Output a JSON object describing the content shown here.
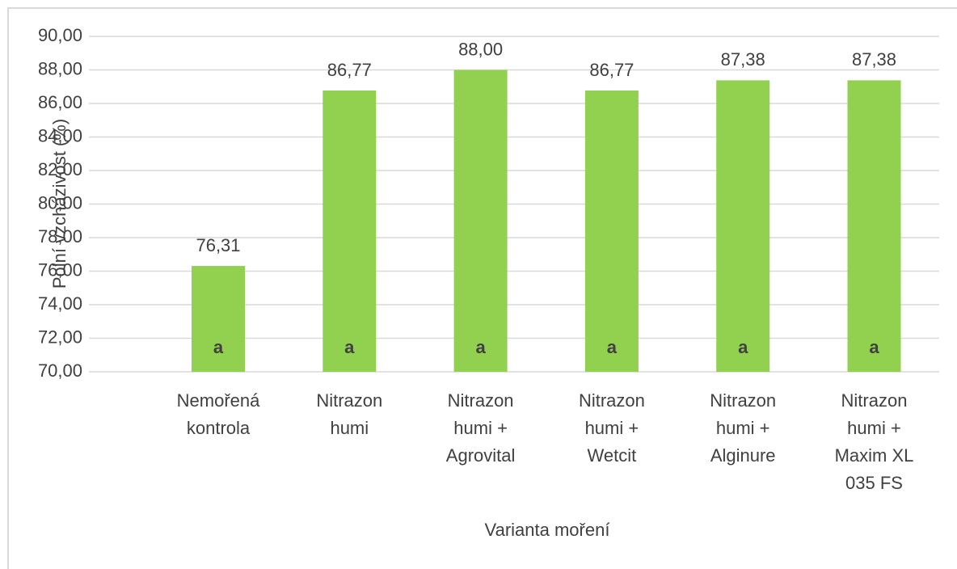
{
  "chart_data": {
    "type": "bar",
    "y_axis_label": "Polní vzcházivost (%)",
    "x_axis_label": "Varianta moření",
    "categories": [
      [
        "Nemořená",
        "kontrola"
      ],
      [
        "Nitrazon",
        "humi"
      ],
      [
        "Nitrazon",
        "humi +",
        "Agrovital"
      ],
      [
        "Nitrazon",
        "humi +",
        "Wetcit"
      ],
      [
        "Nitrazon",
        "humi +",
        "Alginure"
      ],
      [
        "Nitrazon",
        "humi +",
        "Maxim XL",
        "035 FS"
      ]
    ],
    "values": [
      76.31,
      86.77,
      88.0,
      86.77,
      87.38,
      87.38
    ],
    "value_labels": [
      "76,31",
      "86,77",
      "88,00",
      "86,77",
      "87,38",
      "87,38"
    ],
    "group_labels": [
      "a",
      "a",
      "a",
      "a",
      "a",
      "a"
    ],
    "color": "#92d050",
    "ylim": [
      70,
      90
    ],
    "yticks": [
      {
        "value": 70,
        "label": "70,00"
      },
      {
        "value": 72,
        "label": "72,00"
      },
      {
        "value": 74,
        "label": "74,00"
      },
      {
        "value": 76,
        "label": "76,00"
      },
      {
        "value": 78,
        "label": "78,00"
      },
      {
        "value": 80,
        "label": "80,00"
      },
      {
        "value": 82,
        "label": "82,00"
      },
      {
        "value": 84,
        "label": "84,00"
      },
      {
        "value": 86,
        "label": "86,00"
      },
      {
        "value": 88,
        "label": "88,00"
      },
      {
        "value": 90,
        "label": "90,00"
      }
    ],
    "grid": true
  }
}
